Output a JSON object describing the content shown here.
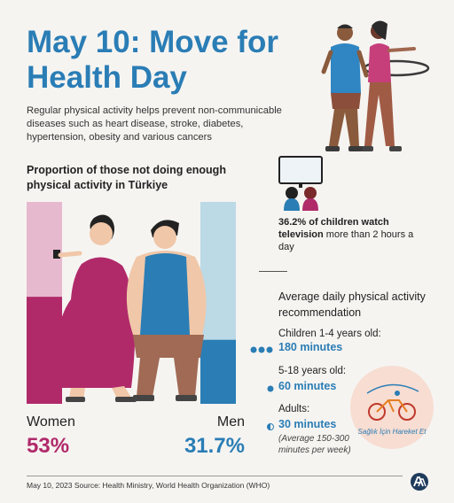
{
  "header": {
    "title": "May 10: Move for Health Day",
    "intro": "Regular physical activity helps prevent non-communicable diseases such as heart disease, stroke, diabetes, hypertension, obesity and various cancers"
  },
  "proportion_section": {
    "title": "Proportion of those not doing enough physical activity in Türkiye",
    "women_label": "Women",
    "men_label": "Men",
    "women_value_text": "53%",
    "men_value_text": "31.7%"
  },
  "chart_data": {
    "type": "bar",
    "categories": [
      "Women",
      "Men"
    ],
    "values": [
      53,
      31.7
    ],
    "ylim": [
      0,
      100
    ],
    "colors": {
      "Women": "#b02a6a",
      "Men": "#2a7db5"
    },
    "track_colors": {
      "Women": "#e7b9cf",
      "Men": "#bcd9e6"
    }
  },
  "tv_stat": {
    "bold": "36.2% of children watch television",
    "rest": " more than 2 hours a day"
  },
  "recommendation": {
    "title": "Average daily physical activity recommendation",
    "groups": [
      {
        "label": "Children 1-4 years old:",
        "value": "180 minutes",
        "icon": "three-dots-icon"
      },
      {
        "label": "5-18 years old:",
        "value": "60 minutes",
        "icon": "one-dot-icon"
      },
      {
        "label": "Adults:",
        "value": "30 minutes",
        "icon": "half-dot-icon",
        "note": "(Average 150-300 minutes per week)"
      }
    ]
  },
  "logo": {
    "text": "Sağlık İçin Hareket Et"
  },
  "footer": {
    "text": "May 10, 2023   Source: Health Ministry, World Health Organization (WHO)"
  },
  "colors": {
    "accent": "#2a7db5",
    "women": "#b02a6a",
    "background": "#f6f4f1"
  }
}
